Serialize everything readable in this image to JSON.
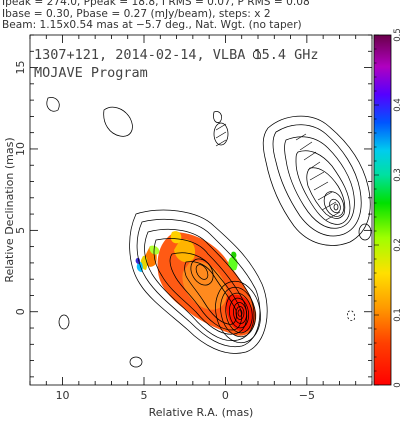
{
  "header": {
    "line1": "Ipeak = 274.0, Ppeak = 18.8, I RMS = 0.07, P RMS = 0.08",
    "line2": "Ibase = 0.30, Pbase = 0.27 (mJy/beam), steps: x 2",
    "line3": "Beam: 1.15x0.54 mas at −5.7 deg., Nat. Wgt. (no taper)"
  },
  "chart_data": {
    "type": "heatmap",
    "title": "1307+121, 2014-02-14, VLBA 15.4 GHz",
    "subtitle": "MOJAVE Program",
    "xlabel": "Relative R.A. (mas)",
    "ylabel": "Relative Declination (mas)",
    "xlim": [
      12,
      -9
    ],
    "ylim": [
      -4.5,
      17
    ],
    "xticks": [
      {
        "value": 10,
        "label": "10"
      },
      {
        "value": 5,
        "label": "5"
      },
      {
        "value": 0,
        "label": "0"
      },
      {
        "value": -5,
        "label": "−5"
      }
    ],
    "yticks": [
      {
        "value": 0,
        "label": "0"
      },
      {
        "value": 5,
        "label": "5"
      },
      {
        "value": 10,
        "label": "10"
      },
      {
        "value": 15,
        "label": "15"
      }
    ],
    "colorbar": {
      "range": [
        0,
        0.5
      ],
      "ticks": [
        {
          "value": 0,
          "label": "0"
        },
        {
          "value": 0.1,
          "label": "0.1"
        },
        {
          "value": 0.2,
          "label": "0.2"
        },
        {
          "value": 0.3,
          "label": "0.3"
        },
        {
          "value": 0.4,
          "label": "0.4"
        },
        {
          "value": 0.5,
          "label": "0.5"
        }
      ]
    },
    "core": {
      "x": 0,
      "y": 0.5
    },
    "northern_component": {
      "x": -5.5,
      "y": 6.5
    },
    "contour_base_mJy_per_beam": 0.3,
    "contour_step_factor": 2
  }
}
